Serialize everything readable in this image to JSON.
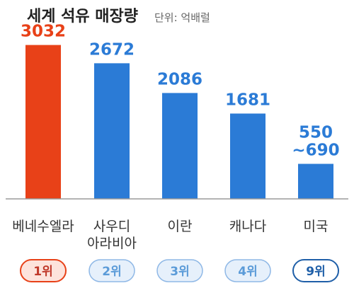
{
  "title": "세계 석유 매장량",
  "subtitle": "단위: 억배럴",
  "chart_data": {
    "type": "bar",
    "title": "세계 석유 매장량",
    "unit": "단위: 억배럴",
    "categories": [
      [
        "베네수엘라"
      ],
      [
        "사우디",
        "아라비아"
      ],
      [
        "이란"
      ],
      [
        "캐나다"
      ],
      [
        "미국"
      ]
    ],
    "values": [
      3032,
      2672,
      2086,
      1681,
      690
    ],
    "value_labels": [
      [
        "3032"
      ],
      [
        "2672"
      ],
      [
        "2086"
      ],
      [
        "1681"
      ],
      [
        "550",
        "~690"
      ]
    ],
    "ranks": [
      "1위",
      "2위",
      "3위",
      "4위",
      "9위"
    ],
    "ylim": [
      0,
      3500
    ],
    "grid": false,
    "legend": "none"
  },
  "colors": {
    "highlight_bar": "#e84118",
    "bar": "#2b7bd6",
    "baseline": "#9a9a9a",
    "rank_highlight_fill": "#fde3dc",
    "rank_highlight_stroke": "#e84118",
    "rank_highlight_text": "#c0392b",
    "rank_fill": "#e6f0fb",
    "rank_stroke": "#8fb8e6",
    "rank_text": "#5b9bd8",
    "rank_last_stroke": "#1f5fa8",
    "rank_last_text": "#1f5fa8"
  }
}
